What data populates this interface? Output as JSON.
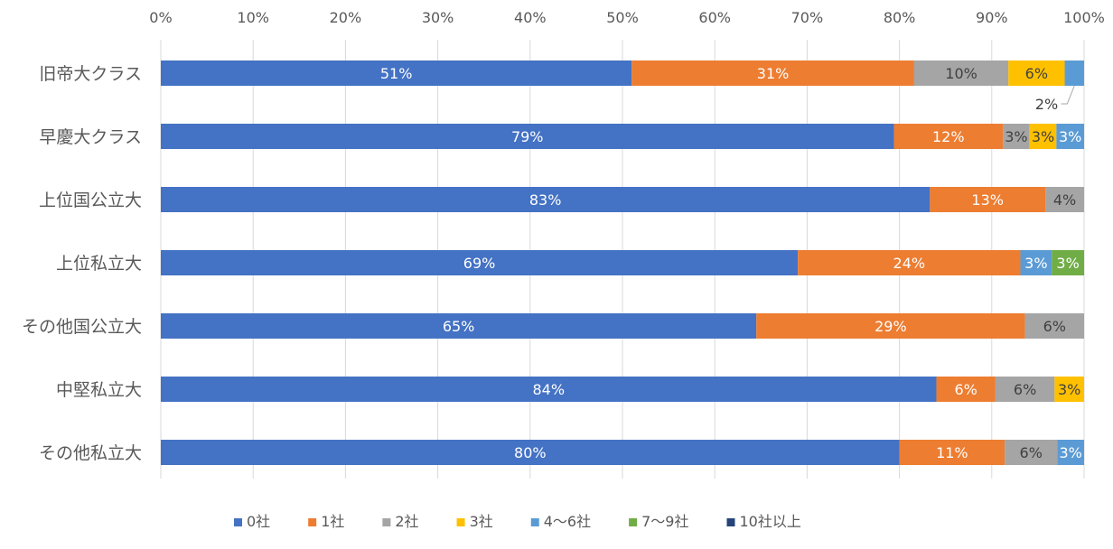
{
  "chart_data": {
    "type": "bar",
    "orientation": "horizontal",
    "stacked": true,
    "xlim": [
      0,
      100
    ],
    "x_ticks": [
      "0%",
      "10%",
      "20%",
      "30%",
      "40%",
      "50%",
      "60%",
      "70%",
      "80%",
      "90%",
      "100%"
    ],
    "grid": true,
    "legend_position": "bottom",
    "categories": [
      "旧帝大クラス",
      "早慶大クラス",
      "上位国公立大",
      "上位私立大",
      "その他国公立大",
      "中堅私立大",
      "その他私立大"
    ],
    "series": [
      {
        "name": "0社",
        "color": "#4472C4",
        "values": [
          51,
          79.4,
          83.3,
          69,
          64.5,
          84,
          80
        ],
        "labels": [
          "51%",
          "79%",
          "83%",
          "69%",
          "65%",
          "84%",
          "80%"
        ]
      },
      {
        "name": "1社",
        "color": "#ED7D31",
        "values": [
          30.6,
          11.8,
          12.5,
          24.1,
          29.1,
          6.4,
          11.4
        ],
        "labels": [
          "31%",
          "12%",
          "13%",
          "24%",
          "29%",
          "6%",
          "11%"
        ]
      },
      {
        "name": "2社",
        "color": "#A5A5A5",
        "values": [
          10.2,
          2.9,
          4.2,
          0,
          6.4,
          6.4,
          5.7
        ],
        "labels": [
          "10%",
          "3%",
          "4%",
          "",
          "6%",
          "6%",
          "6%"
        ]
      },
      {
        "name": "3社",
        "color": "#FFC000",
        "values": [
          6.1,
          2.9,
          0,
          0,
          0,
          3.2,
          0
        ],
        "labels": [
          "6%",
          "3%",
          "",
          "",
          "",
          "3%",
          ""
        ]
      },
      {
        "name": "4〜6社",
        "color": "#5B9BD5",
        "values": [
          2.1,
          3,
          0,
          3.4,
          0,
          0,
          2.9
        ],
        "labels": [
          "2%",
          "3%",
          "",
          "3%",
          "",
          "",
          "3%"
        ]
      },
      {
        "name": "7〜9社",
        "color": "#70AD47",
        "values": [
          0,
          0,
          0,
          3.5,
          0,
          0,
          0
        ],
        "labels": [
          "",
          "",
          "",
          "3%",
          "",
          "",
          ""
        ]
      },
      {
        "name": "10社以上",
        "color": "#264478",
        "values": [
          0,
          0,
          0,
          0,
          0,
          0,
          0
        ],
        "labels": [
          "",
          "",
          "",
          "",
          "",
          "",
          ""
        ]
      }
    ]
  }
}
